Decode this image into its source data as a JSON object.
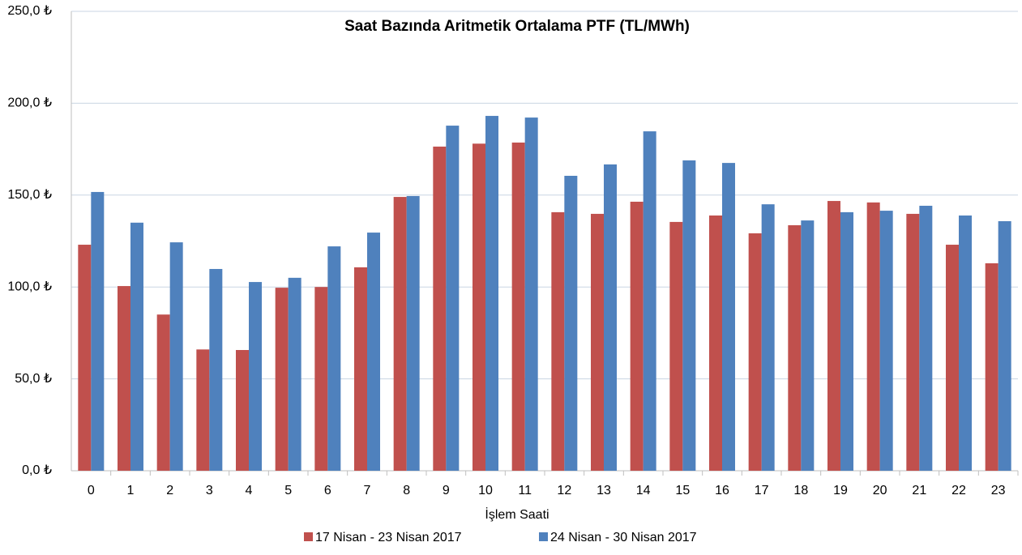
{
  "chart_data": {
    "type": "bar",
    "title": "Saat Bazında Aritmetik Ortalama PTF (TL/MWh)",
    "x_label": "İşlem Saati",
    "categories": [
      "0",
      "1",
      "2",
      "3",
      "4",
      "5",
      "6",
      "7",
      "8",
      "9",
      "10",
      "11",
      "12",
      "13",
      "14",
      "15",
      "16",
      "17",
      "18",
      "19",
      "20",
      "21",
      "22",
      "23"
    ],
    "series": [
      {
        "name": "17 Nisan - 23 Nisan 2017",
        "color": "#c0504d",
        "values": [
          123,
          100.5,
          85,
          66,
          65.7,
          99.6,
          100,
          110.7,
          149,
          176.4,
          178,
          178.6,
          140.7,
          139.8,
          146.4,
          135.4,
          138.9,
          129.2,
          133.6,
          146.8,
          146,
          139.8,
          123,
          112.9
        ]
      },
      {
        "name": "24 Nisan - 30 Nisan 2017",
        "color": "#4f81bd",
        "values": [
          151.7,
          135,
          124.3,
          109.8,
          102.7,
          105,
          122.1,
          129.6,
          149.5,
          187.8,
          193.1,
          192.2,
          160.5,
          166.7,
          184.7,
          168.9,
          167.5,
          145,
          136.2,
          140.7,
          141.5,
          144.2,
          138.9,
          135.8
        ]
      }
    ],
    "ylim": [
      0,
      250
    ],
    "yticks": [
      {
        "value": 0,
        "label": "0,0 ₺"
      },
      {
        "value": 50,
        "label": "50,0 ₺"
      },
      {
        "value": 100,
        "label": "100,0 ₺"
      },
      {
        "value": 150,
        "label": "150,0 ₺"
      },
      {
        "value": 200,
        "label": "200,0 ₺"
      },
      {
        "value": 250,
        "label": "250,0 ₺"
      }
    ],
    "grid": true,
    "legend": "bottom"
  }
}
